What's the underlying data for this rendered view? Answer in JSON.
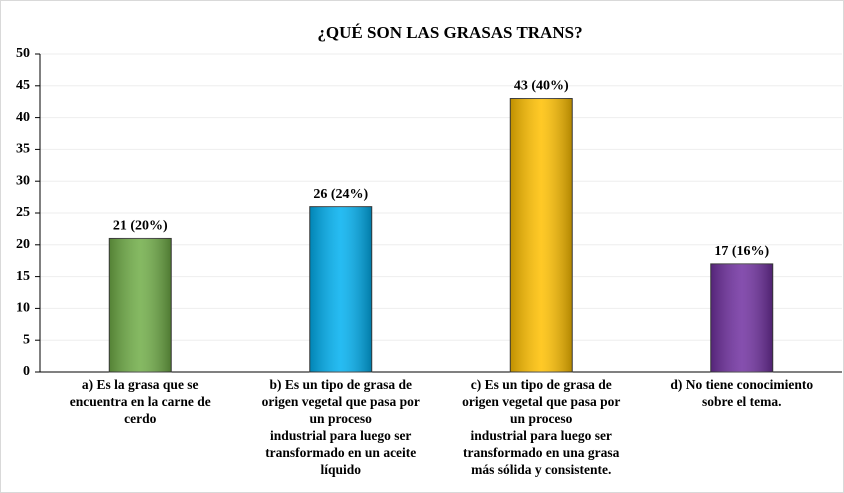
{
  "chart_data": {
    "type": "bar",
    "title": "¿QUÉ SON LAS GRASAS TRANS?",
    "categories": [
      "a) Es la grasa que se\nencuentra en la carne de\ncerdo",
      "b) Es un tipo de grasa de\norigen vegetal que pasa por\nun proceso\nindustrial para luego ser\ntransformado en un aceite\nlíquido",
      "c) Es un tipo de grasa de\norigen vegetal que pasa por\nun proceso\nindustrial para luego ser\ntransformado en una grasa\nmás sólida y consistente.",
      "d) No tiene conocimiento\nsobre el tema."
    ],
    "values": [
      21,
      26,
      43,
      17
    ],
    "value_labels": [
      "21 (20%)",
      "26 (24%)",
      "43 (40%)",
      "17 (16%)"
    ],
    "colors": [
      "#70ad47",
      "#00b0f0",
      "#ffc000",
      "#7030a0"
    ],
    "ylim": [
      0,
      50
    ],
    "yticks": [
      0,
      5,
      10,
      15,
      20,
      25,
      30,
      35,
      40,
      45,
      50
    ],
    "grid": true
  }
}
